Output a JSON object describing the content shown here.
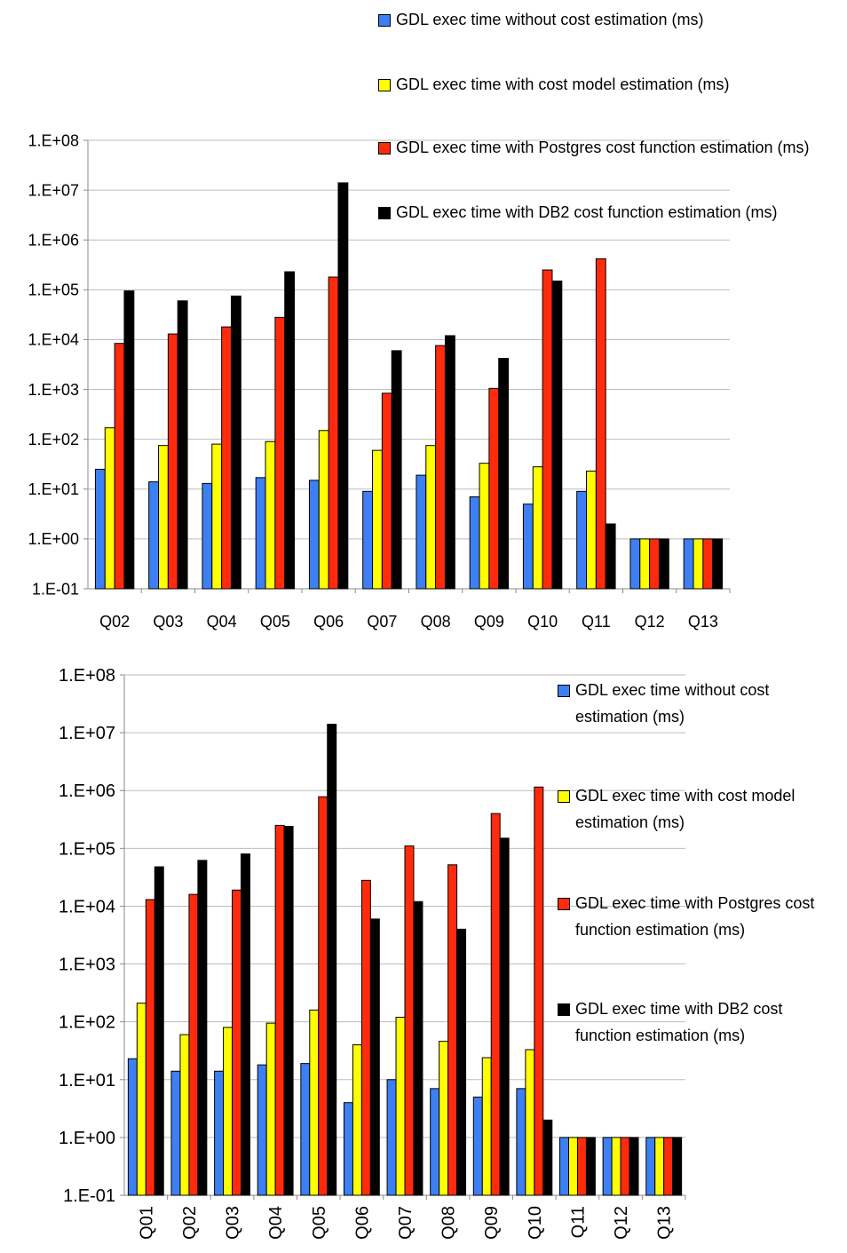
{
  "chart_data": [
    {
      "type": "bar",
      "log_scale": true,
      "ylim": [
        0.1,
        100000000
      ],
      "y_tick_labels": [
        "1.E-01",
        "1.E+00",
        "1.E+01",
        "1.E+02",
        "1.E+03",
        "1.E+04",
        "1.E+05",
        "1.E+06",
        "1.E+07",
        "1.E+08"
      ],
      "grid": true,
      "legend_position": "top-right",
      "categories": [
        "Q02",
        "Q03",
        "Q04",
        "Q05",
        "Q06",
        "Q07",
        "Q08",
        "Q09",
        "Q10",
        "Q11",
        "Q12",
        "Q13"
      ],
      "series": [
        {
          "name": "GDL exec time without cost estimation (ms)",
          "color": "#3d7ff5",
          "values": [
            25,
            14,
            13,
            17,
            15,
            9,
            19,
            7,
            5,
            9,
            1,
            1
          ]
        },
        {
          "name": "GDL exec time with cost model estimation (ms)",
          "color": "#ffff00",
          "values": [
            170,
            75,
            80,
            90,
            150,
            60,
            75,
            33,
            28,
            23,
            1,
            1
          ]
        },
        {
          "name": "GDL exec time with Postgres cost function estimation (ms)",
          "color": "#ff2b0c",
          "values": [
            8400,
            13000,
            18000,
            28000,
            180000,
            840,
            7600,
            1050,
            250000,
            420000,
            1,
            1
          ]
        },
        {
          "name": "GDL exec time with DB2 cost function estimation (ms)",
          "color": "#000000",
          "values": [
            95000,
            60000,
            75000,
            230000,
            14000000,
            6000,
            12000,
            4200,
            150000,
            2,
            1,
            1
          ]
        }
      ]
    },
    {
      "type": "bar",
      "log_scale": true,
      "ylim": [
        0.1,
        100000000
      ],
      "y_tick_labels": [
        "1.E-01",
        "1.E+00",
        "1.E+01",
        "1.E+02",
        "1.E+03",
        "1.E+04",
        "1.E+05",
        "1.E+06",
        "1.E+07",
        "1.E+08"
      ],
      "grid": true,
      "legend_position": "right",
      "categories": [
        "Q01",
        "Q02",
        "Q03",
        "Q04",
        "Q05",
        "Q06",
        "Q07",
        "Q08",
        "Q09",
        "Q10",
        "Q11",
        "Q12",
        "Q13"
      ],
      "series": [
        {
          "name": "GDL exec time without cost estimation (ms)",
          "color": "#3d7ff5",
          "values": [
            23,
            14,
            14,
            18,
            19,
            4,
            10,
            7,
            5,
            7,
            1,
            1,
            1
          ]
        },
        {
          "name": "GDL exec time with cost model estimation (ms)",
          "color": "#ffff00",
          "values": [
            210,
            60,
            80,
            95,
            160,
            40,
            120,
            46,
            24,
            33,
            1,
            1,
            1
          ]
        },
        {
          "name": "GDL exec time with Postgres cost function estimation (ms)",
          "color": "#ff2b0c",
          "values": [
            13000,
            16000,
            19000,
            250000,
            780000,
            28000,
            110000,
            52000,
            400000,
            1150000,
            1,
            1,
            1
          ]
        },
        {
          "name": "GDL exec time with DB2 cost function estimation (ms)",
          "color": "#000000",
          "values": [
            48000,
            62000,
            80000,
            240000,
            14000000,
            6000,
            12000,
            4000,
            150000,
            2,
            1,
            1,
            1
          ]
        }
      ]
    }
  ]
}
